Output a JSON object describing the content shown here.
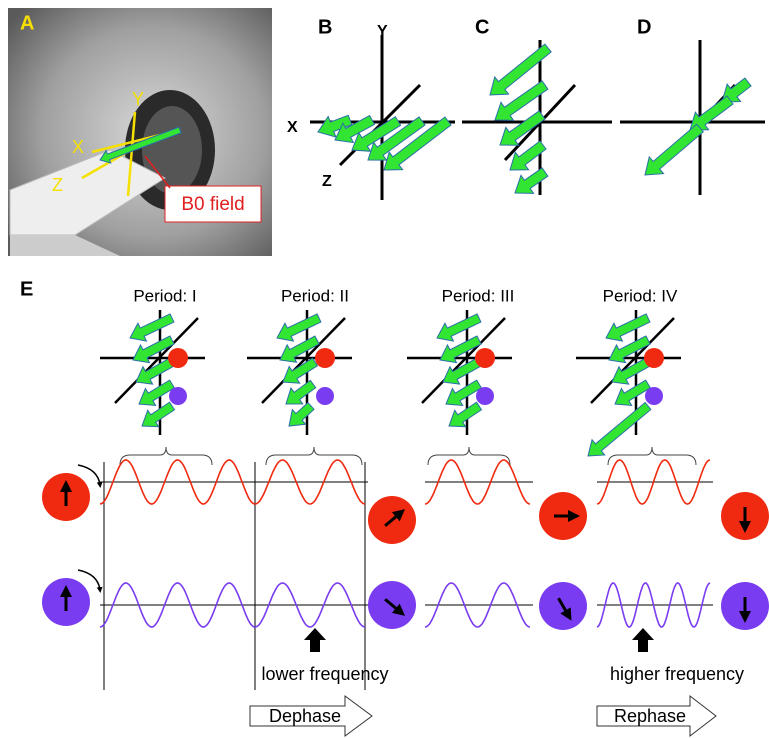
{
  "panels": {
    "a": {
      "label": "A",
      "axes": [
        "X",
        "Y",
        "Z"
      ],
      "field": "B0 field"
    },
    "b": {
      "label": "B",
      "axes": [
        "X",
        "Y",
        "Z"
      ]
    },
    "c": {
      "label": "C"
    },
    "d": {
      "label": "D"
    },
    "e": {
      "label": "E",
      "periods": [
        "Period: I",
        "Period: II",
        "Period: III",
        "Period: IV"
      ],
      "lower": "lower frequency",
      "higher": "higher frequency",
      "dephase": "Dephase",
      "rephase": "Rephase"
    }
  }
}
